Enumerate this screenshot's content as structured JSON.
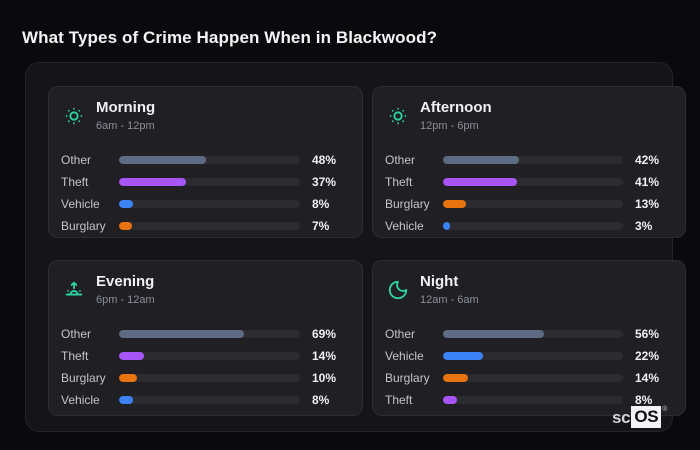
{
  "page": {
    "title": "What Types of Crime Happen When in Blackwood?"
  },
  "brand": {
    "prefix": "sc",
    "box": "OS",
    "registered": "®"
  },
  "colors": {
    "background": "#0a0a0c",
    "container": "#151518",
    "card": "#1f1f24",
    "track": "#2b2b30",
    "accent_teal": "#2dd4a4",
    "category_colors": {
      "Other": "#5d6c82",
      "Theft": "#a855f7",
      "Vehicle": "#3b82f6",
      "Burglary": "#e8730f"
    }
  },
  "chart_data": [
    {
      "type": "bar",
      "orientation": "horizontal",
      "title": "Morning",
      "subtitle": "6am - 12pm",
      "icon": "sun-dim-icon",
      "categories": [
        "Other",
        "Theft",
        "Vehicle",
        "Burglary"
      ],
      "values": [
        48,
        37,
        8,
        7
      ],
      "value_labels": [
        "48%",
        "37%",
        "8%",
        "7%"
      ],
      "xlim": [
        0,
        100
      ]
    },
    {
      "type": "bar",
      "orientation": "horizontal",
      "title": "Afternoon",
      "subtitle": "12pm - 6pm",
      "icon": "sun-dim-icon",
      "categories": [
        "Other",
        "Theft",
        "Burglary",
        "Vehicle"
      ],
      "values": [
        42,
        41,
        13,
        3
      ],
      "value_labels": [
        "42%",
        "41%",
        "13%",
        "3%"
      ],
      "xlim": [
        0,
        100
      ]
    },
    {
      "type": "bar",
      "orientation": "horizontal",
      "title": "Evening",
      "subtitle": "6pm - 12am",
      "icon": "sunrise-icon",
      "categories": [
        "Other",
        "Theft",
        "Burglary",
        "Vehicle"
      ],
      "values": [
        69,
        14,
        10,
        8
      ],
      "value_labels": [
        "69%",
        "14%",
        "10%",
        "8%"
      ],
      "xlim": [
        0,
        100
      ]
    },
    {
      "type": "bar",
      "orientation": "horizontal",
      "title": "Night",
      "subtitle": "12am - 6am",
      "icon": "moon-icon",
      "categories": [
        "Other",
        "Vehicle",
        "Burglary",
        "Theft"
      ],
      "values": [
        56,
        22,
        14,
        8
      ],
      "value_labels": [
        "56%",
        "22%",
        "14%",
        "8%"
      ],
      "xlim": [
        0,
        100
      ]
    }
  ]
}
